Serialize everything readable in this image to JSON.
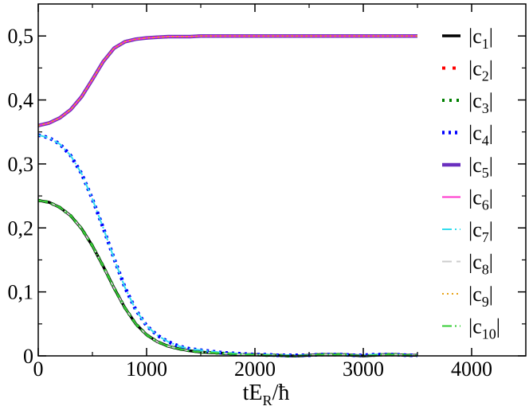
{
  "chart_data": {
    "type": "line",
    "title": "",
    "xlabel": "tE_R/ħ",
    "xlabel_parts": {
      "main": "tE",
      "sub": "R",
      "tail": "/ħ"
    },
    "ylabel": "",
    "xlim": [
      0,
      4500
    ],
    "ylim": [
      0,
      0.55
    ],
    "x_ticks": [
      {
        "value": 0,
        "label": "0"
      },
      {
        "value": 1000,
        "label": "1000"
      },
      {
        "value": 2000,
        "label": "2000"
      },
      {
        "value": 3000,
        "label": "3000"
      },
      {
        "value": 4000,
        "label": "4000"
      }
    ],
    "y_ticks": [
      {
        "value": 0,
        "label": "0"
      },
      {
        "value": 0.1,
        "label": "0,1"
      },
      {
        "value": 0.2,
        "label": "0,2"
      },
      {
        "value": 0.3,
        "label": "0,3"
      },
      {
        "value": 0.4,
        "label": "0,4"
      },
      {
        "value": 0.5,
        "label": "0,5"
      }
    ],
    "x_minor_step": 500,
    "y_minor_step": 0.05,
    "grid": false,
    "legend_position": "right",
    "x": [
      0,
      100,
      200,
      300,
      400,
      500,
      600,
      700,
      800,
      900,
      1000,
      1100,
      1200,
      1300,
      1400,
      1500,
      1600,
      1700,
      1800,
      1900,
      2000,
      2100,
      2200,
      2300,
      2400,
      2500,
      2600,
      2700,
      2800,
      2900,
      3000,
      3100,
      3200,
      3300,
      3400,
      3500
    ],
    "series": [
      {
        "name": "c",
        "sub": "1",
        "color": "#000000",
        "dash": "",
        "width": 3.5,
        "values": [
          0.243,
          0.24,
          0.232,
          0.219,
          0.199,
          0.172,
          0.14,
          0.106,
          0.075,
          0.05,
          0.033,
          0.022,
          0.015,
          0.011,
          0.008,
          0.006,
          0.005,
          0.004,
          0.003,
          0.002,
          0.002,
          0.001,
          0.001,
          0.0,
          0.0,
          0.001,
          0.002,
          0.002,
          0.002,
          0.001,
          0.0,
          0.001,
          0.002,
          0.002,
          0.001,
          0.001
        ]
      },
      {
        "name": "c",
        "sub": "2",
        "color": "#ff0000",
        "dash": "4 9",
        "width": 4,
        "values": [
          0.36,
          0.364,
          0.372,
          0.385,
          0.405,
          0.432,
          0.46,
          0.481,
          0.491,
          0.495,
          0.497,
          0.498,
          0.499,
          0.499,
          0.499,
          0.5,
          0.5,
          0.5,
          0.5,
          0.5,
          0.5,
          0.5,
          0.5,
          0.5,
          0.5,
          0.5,
          0.5,
          0.5,
          0.5,
          0.5,
          0.5,
          0.5,
          0.5,
          0.5,
          0.5,
          0.5
        ]
      },
      {
        "name": "c",
        "sub": "3",
        "color": "#008000",
        "dash": "3 6",
        "width": 4,
        "values": [
          0.243,
          0.24,
          0.232,
          0.219,
          0.199,
          0.172,
          0.14,
          0.106,
          0.075,
          0.05,
          0.033,
          0.022,
          0.015,
          0.011,
          0.008,
          0.006,
          0.005,
          0.004,
          0.003,
          0.002,
          0.002,
          0.001,
          0.001,
          0.0,
          0.0,
          0.001,
          0.002,
          0.002,
          0.002,
          0.001,
          0.0,
          0.001,
          0.002,
          0.002,
          0.001,
          0.001
        ]
      },
      {
        "name": "c",
        "sub": "4",
        "color": "#0000ff",
        "dash": "3 5",
        "width": 4.5,
        "values": [
          0.345,
          0.341,
          0.331,
          0.313,
          0.285,
          0.245,
          0.2,
          0.152,
          0.107,
          0.072,
          0.047,
          0.032,
          0.022,
          0.015,
          0.011,
          0.009,
          0.007,
          0.005,
          0.004,
          0.003,
          0.002,
          0.002,
          0.001,
          0.001,
          0.001,
          0.001,
          0.002,
          0.002,
          0.002,
          0.001,
          0.001,
          0.002,
          0.002,
          0.002,
          0.001,
          0.001
        ]
      },
      {
        "name": "c",
        "sub": "5",
        "color": "#6a2fbf",
        "dash": "",
        "width": 4.5,
        "values": [
          0.36,
          0.364,
          0.372,
          0.385,
          0.405,
          0.432,
          0.46,
          0.481,
          0.491,
          0.495,
          0.497,
          0.498,
          0.499,
          0.499,
          0.499,
          0.5,
          0.5,
          0.5,
          0.5,
          0.5,
          0.5,
          0.5,
          0.5,
          0.5,
          0.5,
          0.5,
          0.5,
          0.5,
          0.5,
          0.5,
          0.5,
          0.5,
          0.5,
          0.5,
          0.5,
          0.5
        ]
      },
      {
        "name": "c",
        "sub": "6",
        "color": "#ff33cc",
        "dash": "",
        "width": 2,
        "values": [
          0.36,
          0.364,
          0.372,
          0.385,
          0.405,
          0.432,
          0.46,
          0.481,
          0.491,
          0.495,
          0.497,
          0.498,
          0.499,
          0.499,
          0.499,
          0.5,
          0.5,
          0.5,
          0.5,
          0.5,
          0.5,
          0.5,
          0.5,
          0.5,
          0.5,
          0.5,
          0.5,
          0.5,
          0.5,
          0.5,
          0.5,
          0.5,
          0.5,
          0.5,
          0.5,
          0.5
        ]
      },
      {
        "name": "c",
        "sub": "7",
        "color": "#33ddee",
        "dash": "12 4 2 4",
        "width": 2,
        "values": [
          0.345,
          0.341,
          0.331,
          0.313,
          0.285,
          0.245,
          0.2,
          0.152,
          0.107,
          0.072,
          0.047,
          0.032,
          0.022,
          0.015,
          0.011,
          0.009,
          0.007,
          0.005,
          0.004,
          0.003,
          0.002,
          0.002,
          0.001,
          0.001,
          0.001,
          0.001,
          0.002,
          0.002,
          0.002,
          0.001,
          0.001,
          0.002,
          0.002,
          0.002,
          0.001,
          0.001
        ]
      },
      {
        "name": "c",
        "sub": "8",
        "color": "#cccccc",
        "dash": "12 6",
        "width": 2,
        "values": [
          0.243,
          0.24,
          0.232,
          0.219,
          0.199,
          0.172,
          0.14,
          0.106,
          0.075,
          0.05,
          0.033,
          0.022,
          0.015,
          0.011,
          0.008,
          0.006,
          0.005,
          0.004,
          0.003,
          0.002,
          0.002,
          0.001,
          0.001,
          0.0,
          0.0,
          0.001,
          0.002,
          0.002,
          0.002,
          0.001,
          0.0,
          0.001,
          0.002,
          0.002,
          0.001,
          0.001
        ]
      },
      {
        "name": "c",
        "sub": "9",
        "color": "#e8a317",
        "dash": "2 4",
        "width": 2,
        "values": [
          0.36,
          0.364,
          0.372,
          0.385,
          0.405,
          0.432,
          0.46,
          0.481,
          0.491,
          0.495,
          0.497,
          0.498,
          0.499,
          0.499,
          0.499,
          0.5,
          0.5,
          0.5,
          0.5,
          0.5,
          0.5,
          0.5,
          0.5,
          0.5,
          0.5,
          0.5,
          0.5,
          0.5,
          0.5,
          0.5,
          0.5,
          0.5,
          0.5,
          0.5,
          0.5,
          0.5
        ]
      },
      {
        "name": "c",
        "sub": "10",
        "color": "#33cc33",
        "dash": "12 4 2 4",
        "width": 2,
        "values": [
          0.243,
          0.24,
          0.232,
          0.219,
          0.199,
          0.172,
          0.14,
          0.106,
          0.075,
          0.05,
          0.033,
          0.022,
          0.015,
          0.011,
          0.008,
          0.006,
          0.005,
          0.004,
          0.003,
          0.002,
          0.002,
          0.001,
          0.001,
          0.0,
          0.0,
          0.001,
          0.002,
          0.002,
          0.002,
          0.001,
          0.0,
          0.001,
          0.002,
          0.002,
          0.001,
          0.001
        ]
      }
    ]
  }
}
